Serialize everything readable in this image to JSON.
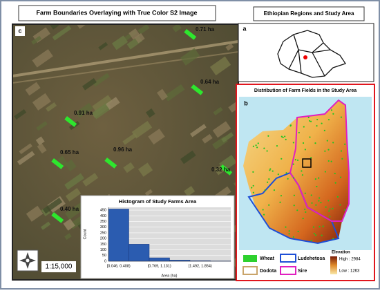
{
  "panel_c": {
    "title": "Farm Boundaries Overlaying with True Color S2 Image",
    "label": "c",
    "farm_labels": [
      "0.71 ha",
      "0.64 ha",
      "0.91 ha",
      "0.65 ha",
      "0.96 ha",
      "0.32 ha",
      "0.40 ha"
    ],
    "scale": "1:15,000"
  },
  "chart_data": {
    "type": "bar",
    "title": "Histogram of Study Farms Area",
    "x_label": "Area (ha)",
    "y_label": "Count",
    "categories": [
      "[0.046, 0.408)",
      null,
      "[0.769, 1.131)",
      null,
      "[1.492, 1.854)",
      null
    ],
    "values": [
      460,
      150,
      30,
      10,
      5,
      2
    ],
    "color": "#2b5cb0",
    "ylim": [
      0,
      475
    ],
    "yticks": [
      0,
      50,
      100,
      150,
      200,
      250,
      300,
      350,
      400,
      450
    ],
    "grid": true
  },
  "panel_a": {
    "title": "Ethiopian Regions and Study Area",
    "label": "a"
  },
  "panel_b": {
    "title": "Distribution of Farm Fields in the Study Area",
    "label": "b",
    "legend": [
      "Wheat",
      "Ludehetosa",
      "Dodota",
      "Sire"
    ],
    "elevation_title": "Elevation",
    "elevation_high": "High : 2984",
    "elevation_low": "Low : 1263"
  }
}
